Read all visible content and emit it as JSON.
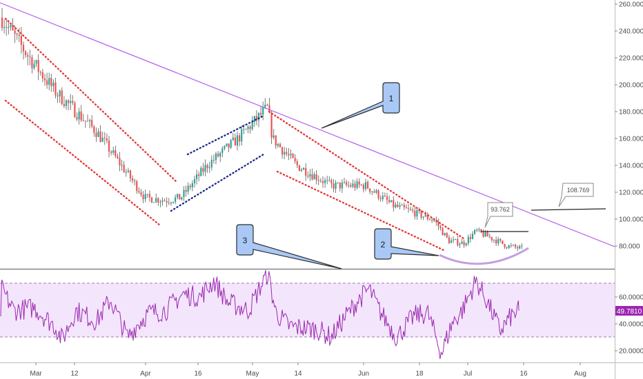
{
  "colors": {
    "up": "#26a69a",
    "down": "#ef5350",
    "wick": "#555555",
    "trendline": "#b05df0",
    "red_channel": "#e53935",
    "blue_channel": "#1f2a8c",
    "rsi_line": "#9c27b0",
    "rsi_band": "#f3e6fc",
    "rsi_value_bg": "#9c27b0",
    "callout_fill": "#a9c8f5",
    "callout_stroke": "#2c2c2c",
    "cup": "#c2a0e0"
  },
  "price_axis": {
    "ticks": [
      "260.000",
      "240.000",
      "220.000",
      "200.000",
      "180.000",
      "160.000",
      "140.000",
      "120.000",
      "100.000",
      "80.000"
    ]
  },
  "rsi_axis": {
    "ticks": [
      "60.0000",
      "40.0000",
      "20.0000"
    ],
    "current_value": "49.7810"
  },
  "date_axis": {
    "labels": [
      "Mar",
      "12",
      "Apr",
      "16",
      "May",
      "14",
      "Jun",
      "18",
      "Jul",
      "16",
      "Aug"
    ]
  },
  "annotations": {
    "callout_1": "1",
    "callout_2": "2",
    "callout_3": "3",
    "price_label_1": "93.762",
    "price_label_2": "108.769"
  },
  "chart_data": [
    {
      "type": "candlestick",
      "title": "",
      "x": [
        "Mar",
        "12",
        "Apr",
        "16",
        "May",
        "14",
        "Jun",
        "18",
        "Jul",
        "16",
        "Aug"
      ],
      "ylim": [
        62,
        263
      ],
      "keypoints": [
        {
          "x": "late Feb",
          "y": 250
        },
        {
          "x": "Mar 10",
          "y": 215
        },
        {
          "x": "Mar 25",
          "y": 160
        },
        {
          "x": "Apr 1",
          "y": 118
        },
        {
          "x": "Apr 10",
          "y": 114
        },
        {
          "x": "Apr 20",
          "y": 145
        },
        {
          "x": "May 6",
          "y": 183
        },
        {
          "x": "May 14",
          "y": 145
        },
        {
          "x": "Jun 1",
          "y": 125
        },
        {
          "x": "Jun 20",
          "y": 100
        },
        {
          "x": "Jul 1",
          "y": 80
        },
        {
          "x": "Jul 5",
          "y": 90
        },
        {
          "x": "Jul 16",
          "y": 78
        }
      ],
      "horizontal_levels": [
        93.762,
        108.769
      ],
      "grid": false
    },
    {
      "type": "line",
      "title": "",
      "ylim": [
        10,
        80
      ],
      "band": [
        30,
        70
      ],
      "keypoints": [
        {
          "x": "late Feb",
          "y": 66
        },
        {
          "x": "Mar 12",
          "y": 38
        },
        {
          "x": "Mar 20",
          "y": 52
        },
        {
          "x": "Apr 1",
          "y": 30
        },
        {
          "x": "Apr 16",
          "y": 62
        },
        {
          "x": "Apr 25",
          "y": 76
        },
        {
          "x": "May 6",
          "y": 78
        },
        {
          "x": "May 14",
          "y": 40
        },
        {
          "x": "May 28",
          "y": 30
        },
        {
          "x": "Jun 2",
          "y": 68
        },
        {
          "x": "Jun 18",
          "y": 45
        },
        {
          "x": "Jun 28",
          "y": 12
        },
        {
          "x": "Jul 6",
          "y": 72
        },
        {
          "x": "Jul 16",
          "y": 49.781
        }
      ],
      "grid": false
    }
  ]
}
